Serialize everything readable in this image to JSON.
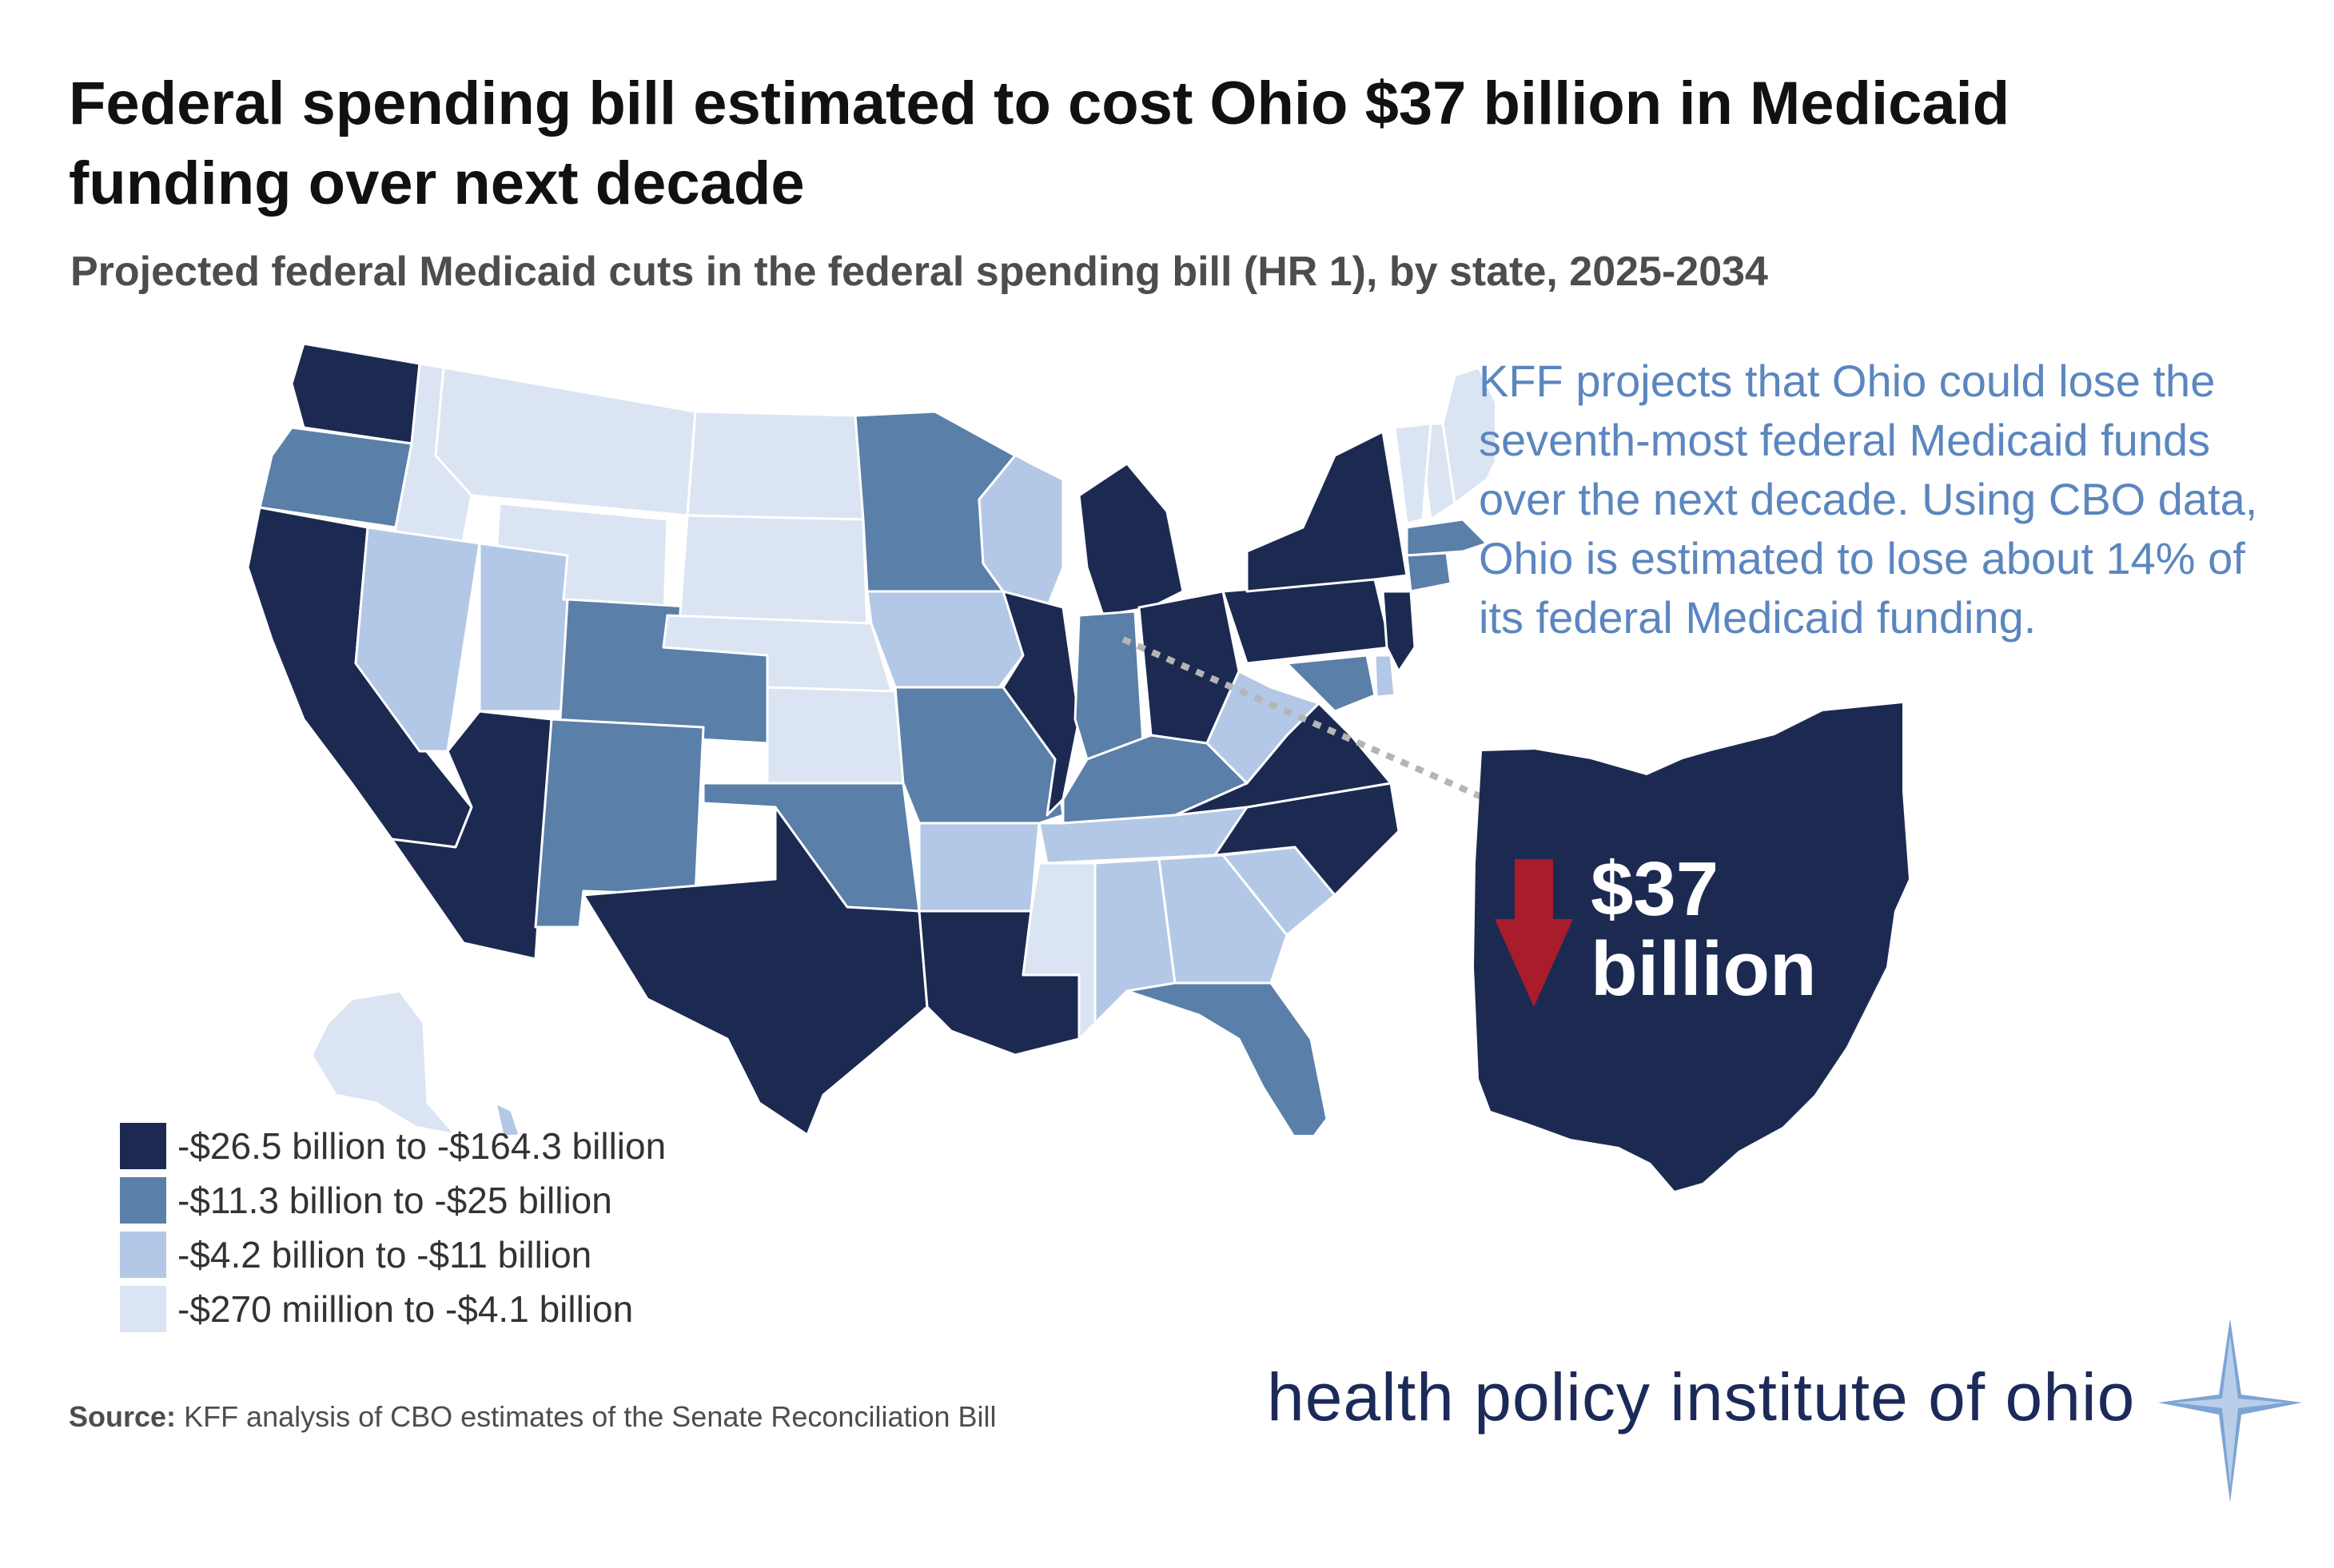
{
  "title": "Federal spending bill estimated to cost Ohio $37 billion in Medicaid funding over next decade",
  "subtitle": "Projected federal Medicaid cuts in the federal spending bill (HR 1), by state, 2025-2034",
  "annotation": "KFF projects that Ohio could lose the seventh-most federal Medicaid funds over the next decade. Using CBO data, Ohio is estimated to lose about 14% of its federal Medicaid funding.",
  "callout": {
    "amount": "$37",
    "unit": "billion"
  },
  "legend": [
    {
      "label": "-$26.5 billion to -$164.3 billion",
      "color": "#1c2a52"
    },
    {
      "label": "-$11.3 billion to -$25 billion",
      "color": "#5a7fa8"
    },
    {
      "label": "-$4.2 billion to -$11 billion",
      "color": "#b3c8e6"
    },
    {
      "label": "-$270 miillion to -$4.1 billion",
      "color": "#dbe4f3"
    }
  ],
  "source_label": "Source:",
  "source_text": "KFF analysis of CBO estimates of the Senate Reconciliation Bill",
  "logo_text": "health policy institute of ohio",
  "colors": {
    "arrow": "#a81c2c",
    "ohio": "#1c2a52",
    "annotation": "#5b86bf"
  },
  "states": [
    {
      "name": "WA",
      "tier": 0
    },
    {
      "name": "OR",
      "tier": 1
    },
    {
      "name": "CA",
      "tier": 0
    },
    {
      "name": "ID",
      "tier": 3
    },
    {
      "name": "NV",
      "tier": 2
    },
    {
      "name": "AZ",
      "tier": 0
    },
    {
      "name": "MT",
      "tier": 3
    },
    {
      "name": "WY",
      "tier": 3
    },
    {
      "name": "UT",
      "tier": 2
    },
    {
      "name": "CO",
      "tier": 1
    },
    {
      "name": "NM",
      "tier": 1
    },
    {
      "name": "ND",
      "tier": 3
    },
    {
      "name": "SD",
      "tier": 3
    },
    {
      "name": "NE",
      "tier": 3
    },
    {
      "name": "KS",
      "tier": 3
    },
    {
      "name": "OK",
      "tier": 1
    },
    {
      "name": "TX",
      "tier": 0
    },
    {
      "name": "MN",
      "tier": 1
    },
    {
      "name": "IA",
      "tier": 2
    },
    {
      "name": "MO",
      "tier": 1
    },
    {
      "name": "AR",
      "tier": 2
    },
    {
      "name": "LA",
      "tier": 0
    },
    {
      "name": "WI",
      "tier": 2
    },
    {
      "name": "IL",
      "tier": 0
    },
    {
      "name": "MI",
      "tier": 0
    },
    {
      "name": "IN",
      "tier": 1
    },
    {
      "name": "OH",
      "tier": 0
    },
    {
      "name": "KY",
      "tier": 1
    },
    {
      "name": "TN",
      "tier": 2
    },
    {
      "name": "MS",
      "tier": 3
    },
    {
      "name": "AL",
      "tier": 2
    },
    {
      "name": "GA",
      "tier": 2
    },
    {
      "name": "FL",
      "tier": 1
    },
    {
      "name": "SC",
      "tier": 2
    },
    {
      "name": "NC",
      "tier": 0
    },
    {
      "name": "VA",
      "tier": 0
    },
    {
      "name": "WV",
      "tier": 2
    },
    {
      "name": "PA",
      "tier": 0
    },
    {
      "name": "NY",
      "tier": 0
    },
    {
      "name": "ME",
      "tier": 3
    },
    {
      "name": "NH",
      "tier": 3
    },
    {
      "name": "VT",
      "tier": 3
    },
    {
      "name": "MA",
      "tier": 1
    },
    {
      "name": "CT",
      "tier": 1
    },
    {
      "name": "NJ",
      "tier": 0
    },
    {
      "name": "MD",
      "tier": 1
    },
    {
      "name": "DE",
      "tier": 2
    },
    {
      "name": "AK",
      "tier": 3
    },
    {
      "name": "HI",
      "tier": 2
    }
  ]
}
